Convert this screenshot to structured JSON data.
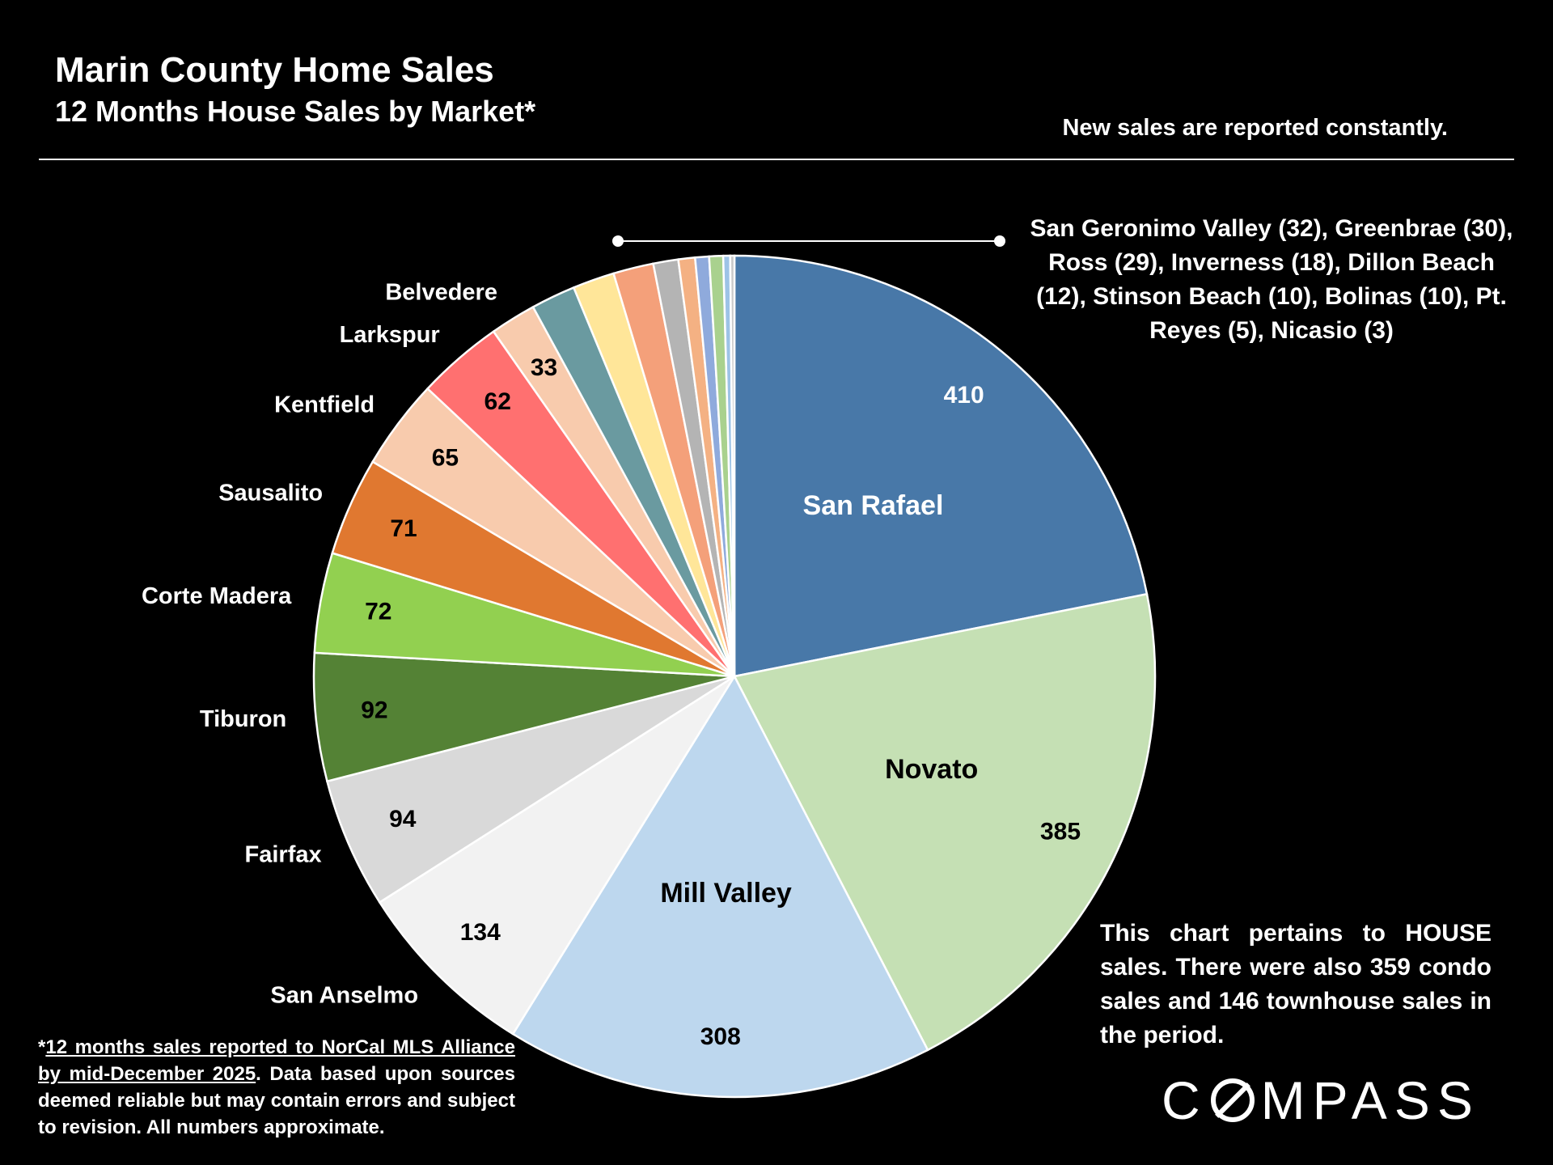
{
  "header": {
    "title": "Marin County Home Sales",
    "subtitle": "12 Months House Sales by Market*",
    "note": "New sales are reported constantly."
  },
  "annotations": {
    "small_markets": "San Geronimo Valley (32), Greenbrae (30), Ross (29), Inverness (18), Dillon Beach (12), Stinson Beach (10), Bolinas (10), Pt. Reyes (5), Nicasio (3)",
    "house_note": "This chart pertains to HOUSE sales. There were also 359 condo sales and 146 townhouse sales in the period.",
    "footnote_star": "*",
    "footnote_underlined": "12 months sales reported to NorCal MLS Alliance by mid-December 2025",
    "footnote_rest": ". Data based upon sources deemed reliable but may contain errors and subject to revision. All numbers approximate."
  },
  "logo": {
    "text_before": "C",
    "text_after": "MPASS"
  },
  "chart_data": {
    "type": "pie",
    "title": "Marin County Home Sales",
    "subtitle": "12 Months House Sales by Market*",
    "slices": [
      {
        "name": "San Rafael",
        "value": 410,
        "color": "#4878a8",
        "value_label": "410",
        "label_inside": true
      },
      {
        "name": "Novato",
        "value": 385,
        "color": "#c5e0b4",
        "value_label": "385",
        "label_inside": true
      },
      {
        "name": "Mill Valley",
        "value": 308,
        "color": "#bdd7ee",
        "value_label": "308",
        "label_inside": true
      },
      {
        "name": "San Anselmo",
        "value": 134,
        "color": "#f2f2f2",
        "value_label": "134",
        "label_inside": false
      },
      {
        "name": "Fairfax",
        "value": 94,
        "color": "#d9d9d9",
        "value_label": "94",
        "label_inside": false
      },
      {
        "name": "Tiburon",
        "value": 92,
        "color": "#548235",
        "value_label": "92",
        "label_inside": false
      },
      {
        "name": "Corte Madera",
        "value": 72,
        "color": "#92d050",
        "value_label": "72",
        "label_inside": false
      },
      {
        "name": "Sausalito",
        "value": 71,
        "color": "#e07830",
        "value_label": "71",
        "label_inside": false
      },
      {
        "name": "Kentfield",
        "value": 65,
        "color": "#f8cbad",
        "value_label": "65",
        "label_inside": false
      },
      {
        "name": "Larkspur",
        "value": 62,
        "color": "#ff7070",
        "value_label": "62",
        "label_inside": false
      },
      {
        "name": "Belvedere",
        "value": 33,
        "color": "#f8cbad",
        "value_label": "33",
        "label_inside": false
      },
      {
        "name": "San Geronimo Valley",
        "value": 32,
        "color": "#6a9aa0",
        "value_label": "",
        "label_inside": false
      },
      {
        "name": "Greenbrae",
        "value": 30,
        "color": "#ffe699",
        "value_label": "",
        "label_inside": false
      },
      {
        "name": "Ross",
        "value": 29,
        "color": "#f4a07a",
        "value_label": "",
        "label_inside": false
      },
      {
        "name": "Inverness",
        "value": 18,
        "color": "#b4b4b4",
        "value_label": "",
        "label_inside": false
      },
      {
        "name": "Dillon Beach",
        "value": 12,
        "color": "#f4b183",
        "value_label": "",
        "label_inside": false
      },
      {
        "name": "Stinson Beach",
        "value": 10,
        "color": "#8faadc",
        "value_label": "",
        "label_inside": false
      },
      {
        "name": "Bolinas",
        "value": 10,
        "color": "#a9d18e",
        "value_label": "",
        "label_inside": false
      },
      {
        "name": "Pt. Reyes",
        "value": 5,
        "color": "#9dc3e6",
        "value_label": "",
        "label_inside": false
      },
      {
        "name": "Nicasio",
        "value": 3,
        "color": "#c9c9c9",
        "value_label": "",
        "label_inside": false
      }
    ]
  }
}
